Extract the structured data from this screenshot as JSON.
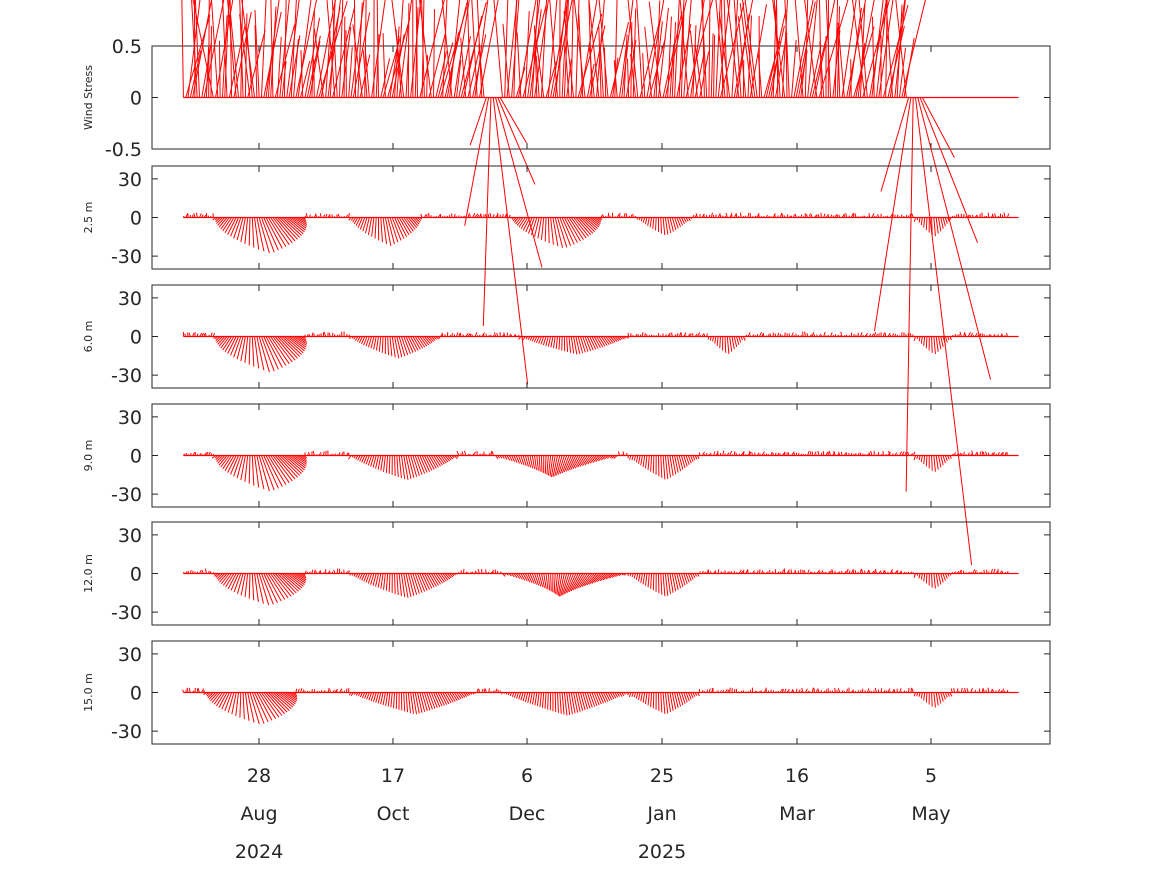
{
  "chart_data": {
    "type": "line",
    "description_colors": {
      "series": "#ff0000",
      "axes": "#262626"
    },
    "x_axis": {
      "ticks": [
        {
          "day": "28",
          "month": "Aug"
        },
        {
          "day": "17",
          "month": "Oct"
        },
        {
          "day": "6",
          "month": "Dec"
        },
        {
          "day": "25",
          "month": "Jan"
        },
        {
          "day": "16",
          "month": "Mar"
        },
        {
          "day": "5",
          "month": "May"
        }
      ],
      "years": [
        "2024",
        "2025"
      ],
      "range": [
        "2024-07-19",
        "2025-06-09"
      ]
    },
    "panels": [
      {
        "ylabel": "Wind Stress",
        "ylim": [
          -0.5,
          0.5
        ],
        "yticks": [
          "0.5",
          "0",
          "-0.5"
        ],
        "stick_scale": 0.01,
        "events": [
          {
            "x": 0.07,
            "u": 0.003,
            "v": 0.09,
            "w": 0.002
          },
          {
            "x": 0.38,
            "u": 0.002,
            "v": -0.03,
            "w": 0.01
          },
          {
            "x": 0.85,
            "u": 0.003,
            "v": -0.05,
            "w": 0.01
          }
        ]
      },
      {
        "ylabel": "2.5 m",
        "ylim": [
          -40,
          40
        ],
        "yticks": [
          "30",
          "0",
          "-30"
        ],
        "stick_scale": 1,
        "events": [
          {
            "x": 0.12,
            "u": 1.6,
            "v": -28,
            "w": 0.05
          },
          {
            "x": 0.26,
            "u": 0.8,
            "v": -22,
            "w": 0.04
          },
          {
            "x": 0.45,
            "u": 1.2,
            "v": -24,
            "w": 0.05
          },
          {
            "x": 0.57,
            "u": 0.3,
            "v": -14,
            "w": 0.03
          },
          {
            "x": 0.87,
            "u": 0.2,
            "v": -15,
            "w": 0.02
          }
        ]
      },
      {
        "ylabel": "6.0 m",
        "ylim": [
          -40,
          40
        ],
        "yticks": [
          "30",
          "0",
          "-30"
        ],
        "stick_scale": 1,
        "events": [
          {
            "x": 0.12,
            "u": 1.6,
            "v": -28,
            "w": 0.05
          },
          {
            "x": 0.27,
            "u": 0.6,
            "v": -17,
            "w": 0.05
          },
          {
            "x": 0.47,
            "u": 0.5,
            "v": -14,
            "w": 0.06
          },
          {
            "x": 0.64,
            "u": 0.2,
            "v": -14,
            "w": 0.02
          },
          {
            "x": 0.87,
            "u": 0.2,
            "v": -14,
            "w": 0.02
          }
        ]
      },
      {
        "ylabel": "9.0 m",
        "ylim": [
          -40,
          40
        ],
        "yticks": [
          "30",
          "0",
          "-30"
        ],
        "stick_scale": 1,
        "events": [
          {
            "x": 0.12,
            "u": 1.6,
            "v": -28,
            "w": 0.05
          },
          {
            "x": 0.28,
            "u": 0.6,
            "v": -19,
            "w": 0.06
          },
          {
            "x": 0.45,
            "u": -0.6,
            "v": -17,
            "w": 0.07
          },
          {
            "x": 0.57,
            "u": 0.3,
            "v": -19,
            "w": 0.04
          },
          {
            "x": 0.87,
            "u": 0.2,
            "v": -13,
            "w": 0.02
          }
        ]
      },
      {
        "ylabel": "12.0 m",
        "ylim": [
          -40,
          40
        ],
        "yticks": [
          "30",
          "0",
          "-30"
        ],
        "stick_scale": 1,
        "events": [
          {
            "x": 0.12,
            "u": 1.5,
            "v": -25,
            "w": 0.05
          },
          {
            "x": 0.28,
            "u": 0.6,
            "v": -19,
            "w": 0.06
          },
          {
            "x": 0.46,
            "u": -0.8,
            "v": -18,
            "w": 0.07
          },
          {
            "x": 0.57,
            "u": 0.3,
            "v": -18,
            "w": 0.04
          },
          {
            "x": 0.87,
            "u": 0.2,
            "v": -12,
            "w": 0.02
          }
        ]
      },
      {
        "ylabel": "15.0 m",
        "ylim": [
          -40,
          40
        ],
        "yticks": [
          "30",
          "0",
          "-30"
        ],
        "stick_scale": 1,
        "events": [
          {
            "x": 0.11,
            "u": 1.5,
            "v": -25,
            "w": 0.05
          },
          {
            "x": 0.29,
            "u": 0.5,
            "v": -17,
            "w": 0.07
          },
          {
            "x": 0.46,
            "u": 0.4,
            "v": -18,
            "w": 0.07
          },
          {
            "x": 0.57,
            "u": 0.3,
            "v": -17,
            "w": 0.04
          },
          {
            "x": 0.87,
            "u": 0.2,
            "v": -12,
            "w": 0.02
          }
        ]
      }
    ],
    "data_extent": {
      "start": 0.035,
      "end_stress": 0.86,
      "end_currents": 1.0,
      "end_axis": 0.965
    },
    "grid": false,
    "legend": "none"
  }
}
